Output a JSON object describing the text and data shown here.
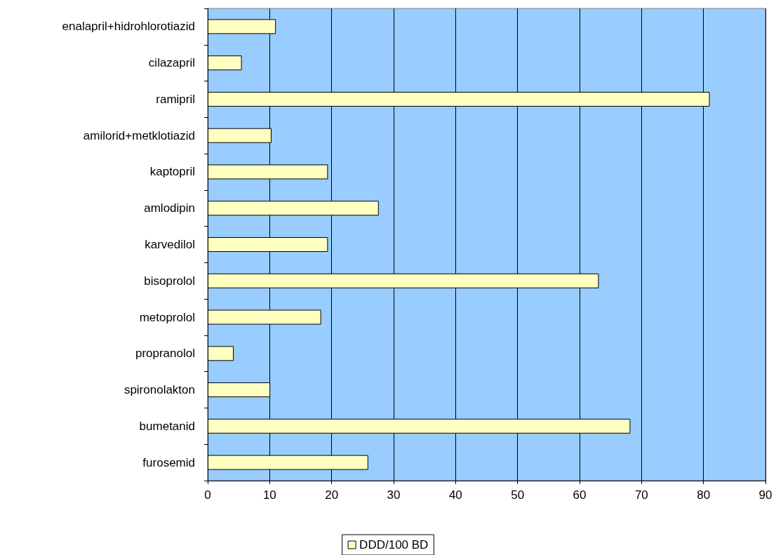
{
  "chart_data": {
    "type": "bar",
    "orientation": "horizontal",
    "categories": [
      "enalapril+hidrohlorotiazid",
      "cilazapril",
      "ramipril",
      "amilorid+metklotiazid",
      "kaptopril",
      "amlodipin",
      "karvedilol",
      "bisoprolol",
      "metoprolol",
      "propranolol",
      "spironolakton",
      "bumetanid",
      "furosemid"
    ],
    "series": [
      {
        "name": "DDD/100 BD",
        "color": "#ffffc0",
        "values": [
          11.0,
          5.5,
          81.0,
          10.3,
          19.4,
          27.6,
          19.4,
          63.1,
          18.3,
          4.2,
          10.1,
          68.2,
          25.9
        ]
      }
    ],
    "xlim": [
      0,
      90
    ],
    "xticks": [
      0,
      10,
      20,
      30,
      40,
      50,
      60,
      70,
      80,
      90
    ],
    "grid": "x",
    "legend": "bottom"
  }
}
